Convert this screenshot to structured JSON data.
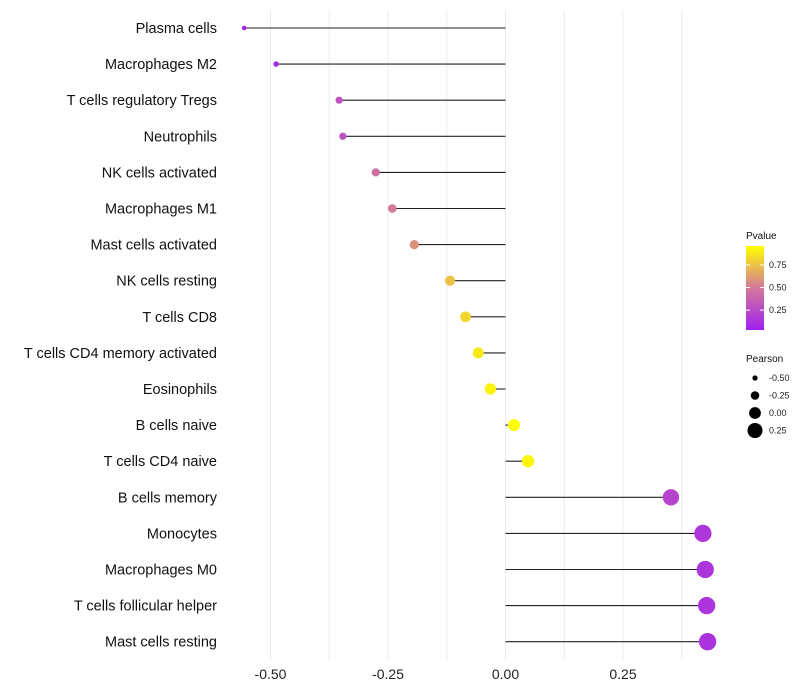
{
  "chart_data": {
    "type": "lollipop",
    "title": "",
    "xlabel": "",
    "ylabel": "",
    "xlim": [
      -0.6,
      0.48
    ],
    "x_ticks": [
      -0.5,
      -0.25,
      0,
      0.25
    ],
    "x_tick_labels": [
      "-0.50",
      "-0.25",
      "0.00",
      "0.25"
    ],
    "grid": true,
    "categories": [
      "Plasma cells",
      "Macrophages M2",
      "T cells regulatory  Tregs",
      "Neutrophils",
      "NK cells activated",
      "Macrophages M1",
      "Mast cells activated",
      "NK cells resting",
      "T cells CD8",
      "T cells CD4 memory activated",
      "Eosinophils",
      "B cells naive",
      "T cells CD4 naive",
      "B cells memory",
      "Monocytes",
      "Macrophages M0",
      "T cells follicular helper",
      "Mast cells resting"
    ],
    "pearson": [
      -0.556,
      -0.488,
      -0.354,
      -0.346,
      -0.276,
      -0.241,
      -0.194,
      -0.118,
      -0.085,
      -0.058,
      -0.032,
      0.018,
      0.048,
      0.352,
      0.42,
      0.425,
      0.428,
      0.43
    ],
    "pvalue": [
      0.03,
      0.06,
      0.3,
      0.3,
      0.45,
      0.5,
      0.58,
      0.75,
      0.82,
      0.88,
      0.92,
      0.96,
      0.93,
      0.22,
      0.15,
      0.14,
      0.14,
      0.13
    ],
    "color_legend": {
      "title": "Pvalue",
      "ticks": [
        0.75,
        0.5,
        0.25
      ],
      "tick_labels": [
        "0.75",
        "0.50",
        "0.25"
      ],
      "low_color": "#a020f0",
      "mid_color": "#d4789a",
      "high_color": "#ffff00"
    },
    "size_legend": {
      "title": "Pearson",
      "values": [
        -0.5,
        -0.25,
        0,
        0.25
      ],
      "labels": [
        "-0.50",
        "-0.25",
        "0.00",
        "0.25"
      ]
    }
  }
}
